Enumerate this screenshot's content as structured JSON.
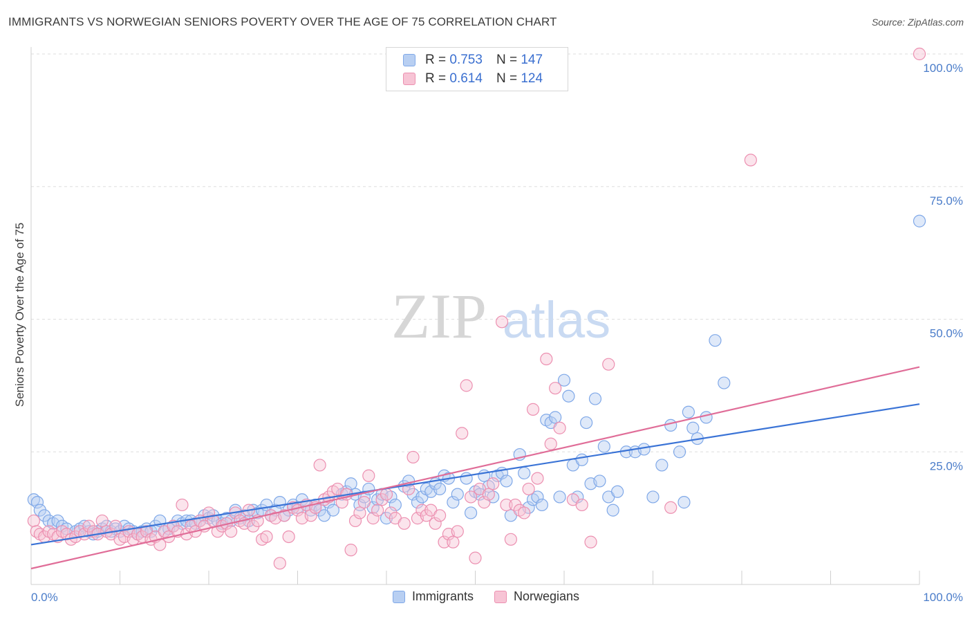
{
  "title": "IMMIGRANTS VS NORWEGIAN SENIORS POVERTY OVER THE AGE OF 75 CORRELATION CHART",
  "source": "Source: ZipAtlas.com",
  "watermark": {
    "zip": "ZIP",
    "atlas": "atlas"
  },
  "legend": {
    "r_label": "R =",
    "n_label": "N =",
    "rows": [
      {
        "series": "Immigrants",
        "r": "0.753",
        "n": "147",
        "color": "#7fa8e8",
        "fill": "#b8cff2"
      },
      {
        "series": "Norwegians",
        "r": "0.614",
        "n": "124",
        "color": "#ec8fb0",
        "fill": "#f7c4d5"
      }
    ]
  },
  "chart_data": {
    "type": "scatter",
    "title": "IMMIGRANTS VS NORWEGIAN SENIORS POVERTY OVER THE AGE OF 75 CORRELATION CHART",
    "xlabel": "",
    "ylabel": "Seniors Poverty Over the Age of 75",
    "xlim": [
      0,
      100
    ],
    "ylim": [
      0,
      100
    ],
    "x_tick_labels": [
      "0.0%",
      "100.0%"
    ],
    "y_tick_labels": [
      "25.0%",
      "50.0%",
      "75.0%",
      "100.0%"
    ],
    "y_ticks": [
      25,
      50,
      75,
      100
    ],
    "grid": true,
    "legend_position": "top-center",
    "series": [
      {
        "name": "Immigrants",
        "color": "#7fa8e8",
        "trend": {
          "x": [
            0,
            100
          ],
          "y": [
            7.5,
            34
          ]
        },
        "trend_color": "#3a73d6",
        "points": [
          [
            0.3,
            16
          ],
          [
            0.7,
            15.5
          ],
          [
            1,
            14
          ],
          [
            1.5,
            13
          ],
          [
            2,
            12
          ],
          [
            2.5,
            11.5
          ],
          [
            3,
            12
          ],
          [
            3.5,
            11
          ],
          [
            4,
            10.5
          ],
          [
            5,
            10
          ],
          [
            5.5,
            10.5
          ],
          [
            6,
            11
          ],
          [
            6.5,
            10
          ],
          [
            7,
            9.5
          ],
          [
            7.5,
            10
          ],
          [
            8,
            10.5
          ],
          [
            8.5,
            11
          ],
          [
            9,
            10
          ],
          [
            9.5,
            10.5
          ],
          [
            10,
            10
          ],
          [
            10.5,
            11
          ],
          [
            11,
            10.5
          ],
          [
            11.5,
            10
          ],
          [
            12,
            9.5
          ],
          [
            12.5,
            10
          ],
          [
            13,
            10.5
          ],
          [
            13.5,
            10
          ],
          [
            14,
            11
          ],
          [
            14.5,
            12
          ],
          [
            15,
            10
          ],
          [
            15.5,
            10.5
          ],
          [
            16,
            11
          ],
          [
            16.5,
            12
          ],
          [
            17,
            11.5
          ],
          [
            17.5,
            12
          ],
          [
            18,
            12
          ],
          [
            18.5,
            11.5
          ],
          [
            19,
            12
          ],
          [
            19.5,
            13
          ],
          [
            20,
            12.5
          ],
          [
            20.5,
            13
          ],
          [
            21,
            12
          ],
          [
            21.5,
            11.5
          ],
          [
            22,
            12.5
          ],
          [
            22.5,
            12
          ],
          [
            23,
            14
          ],
          [
            23.5,
            12.5
          ],
          [
            24,
            13
          ],
          [
            24.5,
            12
          ],
          [
            25,
            14
          ],
          [
            25.5,
            13.5
          ],
          [
            26,
            14
          ],
          [
            26.5,
            15
          ],
          [
            27,
            13
          ],
          [
            27.5,
            14
          ],
          [
            28,
            15.5
          ],
          [
            28.5,
            13
          ],
          [
            29,
            14
          ],
          [
            29.5,
            15
          ],
          [
            30,
            14.5
          ],
          [
            30.5,
            16
          ],
          [
            31,
            15
          ],
          [
            31.5,
            14
          ],
          [
            32,
            15
          ],
          [
            32.5,
            14
          ],
          [
            33,
            13
          ],
          [
            33.5,
            15.5
          ],
          [
            34,
            14
          ],
          [
            35,
            17
          ],
          [
            35.5,
            17.5
          ],
          [
            36,
            19
          ],
          [
            36.5,
            17
          ],
          [
            37,
            15
          ],
          [
            37.5,
            16.5
          ],
          [
            38,
            18
          ],
          [
            38.5,
            14.5
          ],
          [
            39,
            16
          ],
          [
            39.5,
            17
          ],
          [
            40,
            12.5
          ],
          [
            40.5,
            16.5
          ],
          [
            41,
            15
          ],
          [
            42,
            18.5
          ],
          [
            42.5,
            19.5
          ],
          [
            43,
            17
          ],
          [
            43.5,
            15.5
          ],
          [
            44,
            16.5
          ],
          [
            44.5,
            18
          ],
          [
            45,
            17.5
          ],
          [
            45.5,
            19
          ],
          [
            46,
            18
          ],
          [
            46.5,
            20.5
          ],
          [
            47,
            20
          ],
          [
            47.5,
            15.5
          ],
          [
            48,
            17
          ],
          [
            49,
            20
          ],
          [
            49.5,
            13.5
          ],
          [
            50,
            17.5
          ],
          [
            50.5,
            17
          ],
          [
            51,
            20.5
          ],
          [
            51.5,
            18.5
          ],
          [
            52,
            16.5
          ],
          [
            52.5,
            20.5
          ],
          [
            53,
            21
          ],
          [
            53.5,
            19.5
          ],
          [
            54,
            13
          ],
          [
            55,
            24.5
          ],
          [
            55.5,
            21
          ],
          [
            56,
            14.5
          ],
          [
            56.5,
            16
          ],
          [
            57,
            16.5
          ],
          [
            57.5,
            15
          ],
          [
            58,
            31
          ],
          [
            58.5,
            30.5
          ],
          [
            59,
            31.5
          ],
          [
            59.5,
            16.5
          ],
          [
            60,
            38.5
          ],
          [
            60.5,
            35.5
          ],
          [
            61,
            22.5
          ],
          [
            61.5,
            16.5
          ],
          [
            62,
            23.5
          ],
          [
            62.5,
            30.5
          ],
          [
            63,
            19
          ],
          [
            63.5,
            35
          ],
          [
            64,
            19.5
          ],
          [
            64.5,
            26
          ],
          [
            65,
            16.5
          ],
          [
            65.5,
            14
          ],
          [
            66,
            17.5
          ],
          [
            67,
            25
          ],
          [
            68,
            25
          ],
          [
            69,
            25.5
          ],
          [
            70,
            16.5
          ],
          [
            71,
            22.5
          ],
          [
            72,
            30
          ],
          [
            73,
            25
          ],
          [
            73.5,
            15.5
          ],
          [
            74,
            32.5
          ],
          [
            74.5,
            29.5
          ],
          [
            75,
            27.5
          ],
          [
            76,
            31.5
          ],
          [
            77,
            46
          ],
          [
            78,
            38
          ],
          [
            100,
            68.5
          ]
        ]
      },
      {
        "name": "Norwegians",
        "color": "#ec8fb0",
        "trend": {
          "x": [
            0,
            100
          ],
          "y": [
            3,
            41
          ]
        },
        "trend_color": "#e06d98",
        "points": [
          [
            0.3,
            12
          ],
          [
            0.6,
            10
          ],
          [
            1,
            9.5
          ],
          [
            1.5,
            9
          ],
          [
            2,
            10
          ],
          [
            2.5,
            9.5
          ],
          [
            3,
            9
          ],
          [
            3.5,
            10
          ],
          [
            4,
            9.5
          ],
          [
            4.5,
            8.5
          ],
          [
            5,
            9
          ],
          [
            5.5,
            10
          ],
          [
            6,
            9.5
          ],
          [
            6.5,
            11
          ],
          [
            7,
            10
          ],
          [
            7.5,
            9.5
          ],
          [
            8,
            12
          ],
          [
            8.5,
            10
          ],
          [
            9,
            9.5
          ],
          [
            9.5,
            11
          ],
          [
            10,
            8.5
          ],
          [
            10.5,
            9
          ],
          [
            11,
            10
          ],
          [
            11.5,
            8.5
          ],
          [
            12,
            9.5
          ],
          [
            12.5,
            9
          ],
          [
            13,
            10
          ],
          [
            13.5,
            8.5
          ],
          [
            14,
            9
          ],
          [
            14.5,
            7.5
          ],
          [
            15,
            10
          ],
          [
            15.5,
            9
          ],
          [
            16,
            11
          ],
          [
            16.5,
            10
          ],
          [
            17,
            15
          ],
          [
            17.5,
            9.5
          ],
          [
            18,
            11
          ],
          [
            18.5,
            10
          ],
          [
            19,
            12
          ],
          [
            19.5,
            11
          ],
          [
            20,
            13.5
          ],
          [
            20.5,
            12
          ],
          [
            21,
            10
          ],
          [
            21.5,
            11
          ],
          [
            22,
            11.5
          ],
          [
            22.5,
            10
          ],
          [
            23,
            13.5
          ],
          [
            23.5,
            12
          ],
          [
            24,
            11.5
          ],
          [
            24.5,
            14
          ],
          [
            25,
            11
          ],
          [
            25.5,
            12
          ],
          [
            26,
            8.5
          ],
          [
            26.5,
            9
          ],
          [
            27,
            13
          ],
          [
            27.5,
            12.5
          ],
          [
            28,
            4
          ],
          [
            28.5,
            13
          ],
          [
            29,
            9
          ],
          [
            29.5,
            14.5
          ],
          [
            30,
            14
          ],
          [
            30.5,
            12.5
          ],
          [
            31,
            15
          ],
          [
            31.5,
            13
          ],
          [
            32,
            14.5
          ],
          [
            32.5,
            22.5
          ],
          [
            33,
            16
          ],
          [
            33.5,
            16.5
          ],
          [
            34,
            17.5
          ],
          [
            34.5,
            18
          ],
          [
            35,
            15.5
          ],
          [
            35.5,
            17
          ],
          [
            36,
            6.5
          ],
          [
            36.5,
            12
          ],
          [
            37,
            13.5
          ],
          [
            37.5,
            15.5
          ],
          [
            38,
            20.5
          ],
          [
            38.5,
            12.5
          ],
          [
            39,
            14
          ],
          [
            39.5,
            16
          ],
          [
            40,
            17
          ],
          [
            40.5,
            13.5
          ],
          [
            41,
            12.5
          ],
          [
            42,
            11.5
          ],
          [
            42.5,
            18
          ],
          [
            43,
            24
          ],
          [
            43.5,
            12.5
          ],
          [
            44,
            14
          ],
          [
            44.5,
            13
          ],
          [
            45,
            14
          ],
          [
            45.5,
            11.5
          ],
          [
            46,
            13
          ],
          [
            46.5,
            8
          ],
          [
            47,
            9.5
          ],
          [
            47.5,
            8
          ],
          [
            48,
            10
          ],
          [
            48.5,
            28.5
          ],
          [
            49,
            37.5
          ],
          [
            49.5,
            16.5
          ],
          [
            50,
            5
          ],
          [
            50.5,
            18
          ],
          [
            51,
            15.5
          ],
          [
            51.5,
            17
          ],
          [
            52,
            19
          ],
          [
            53,
            49.5
          ],
          [
            53.5,
            15
          ],
          [
            54,
            8.5
          ],
          [
            54.5,
            15
          ],
          [
            55,
            14
          ],
          [
            55.5,
            13.5
          ],
          [
            56,
            18
          ],
          [
            56.5,
            33
          ],
          [
            57,
            20
          ],
          [
            58,
            42.5
          ],
          [
            58.5,
            26.5
          ],
          [
            59,
            37
          ],
          [
            59.5,
            29.5
          ],
          [
            61,
            16
          ],
          [
            62,
            15
          ],
          [
            63,
            8
          ],
          [
            65,
            41.5
          ],
          [
            72,
            14.5
          ],
          [
            81,
            80
          ],
          [
            100,
            100
          ]
        ]
      }
    ]
  }
}
